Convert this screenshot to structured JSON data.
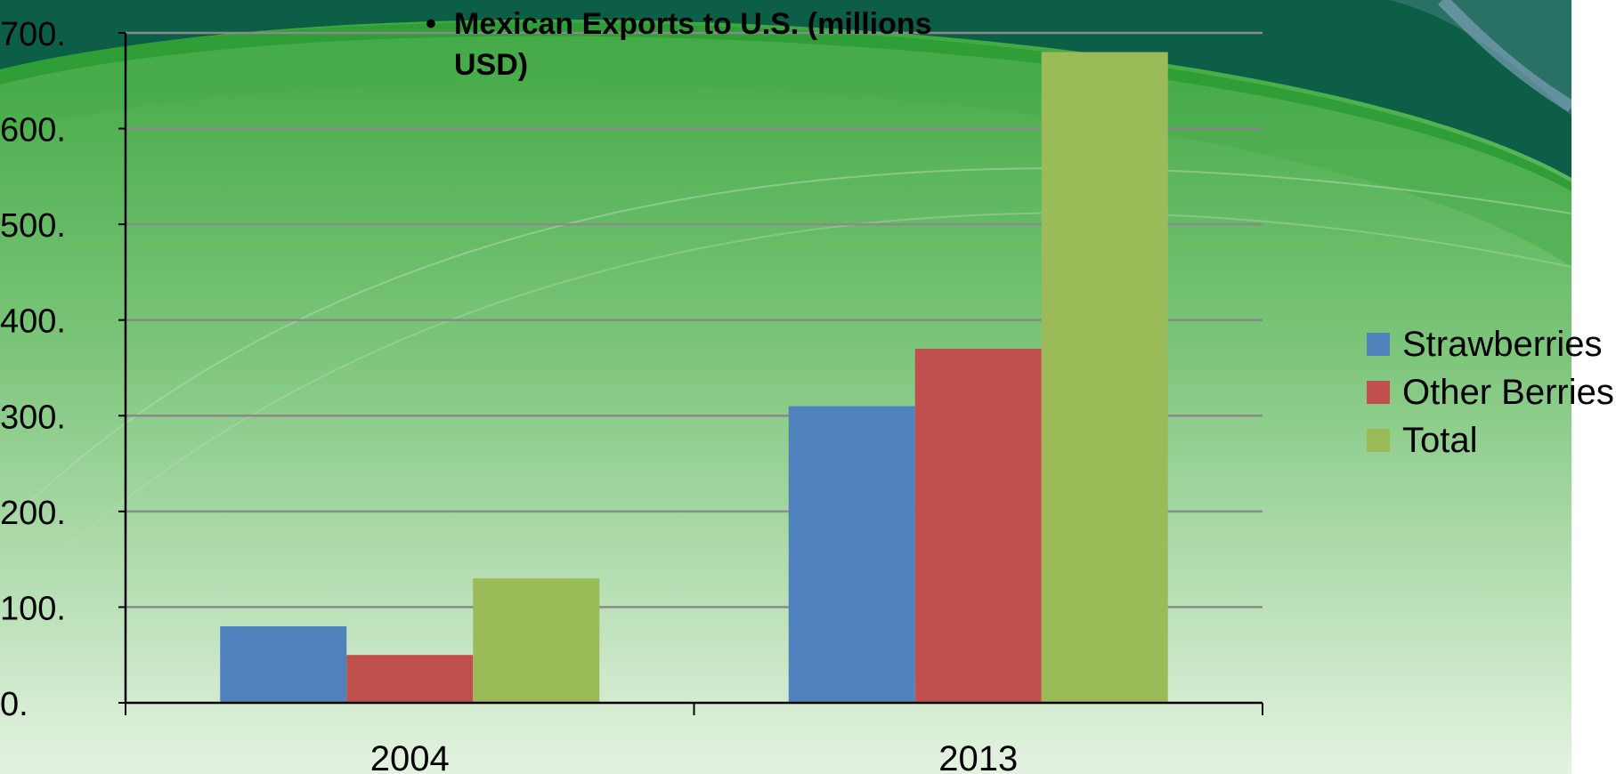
{
  "colors": {
    "strawberries": "#4f81bd",
    "other_berries": "#c0504d",
    "total": "#9bbb59"
  },
  "chart_data": {
    "type": "bar",
    "title": "Mexican Exports to U.S. (millions USD)",
    "bullet": "•",
    "categories": [
      "2004",
      "2013"
    ],
    "series": [
      {
        "name": "Strawberries",
        "values": [
          80,
          310
        ]
      },
      {
        "name": "Other Berries",
        "values": [
          50,
          370
        ]
      },
      {
        "name": "Total",
        "values": [
          130,
          680
        ]
      }
    ],
    "ylim": [
      0,
      700
    ],
    "yticks": [
      "0.",
      "100.",
      "200.",
      "300.",
      "400.",
      "500.",
      "600.",
      "700."
    ],
    "grid": true,
    "legend": "right"
  }
}
